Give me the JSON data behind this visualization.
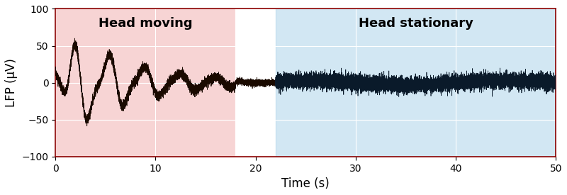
{
  "xlim": [
    0,
    50
  ],
  "ylim": [
    -100,
    100
  ],
  "xlabel": "Time (s)",
  "ylabel": "LFP (μV)",
  "xticks": [
    0,
    10,
    20,
    30,
    40,
    50
  ],
  "yticks": [
    -100,
    -50,
    0,
    50,
    100
  ],
  "pink_region": [
    0,
    18
  ],
  "white_region": [
    18,
    22
  ],
  "blue_region": [
    22,
    50
  ],
  "pink_color": "#f2b8b8",
  "blue_color": "#aed4ea",
  "pink_label": "Head moving",
  "blue_label": "Head stationary",
  "signal_color": "#1a0a00",
  "noise_color": "#0a1a2a",
  "fs": 1000,
  "t_end": 50,
  "pink_alpha": 0.6,
  "blue_alpha": 0.55
}
